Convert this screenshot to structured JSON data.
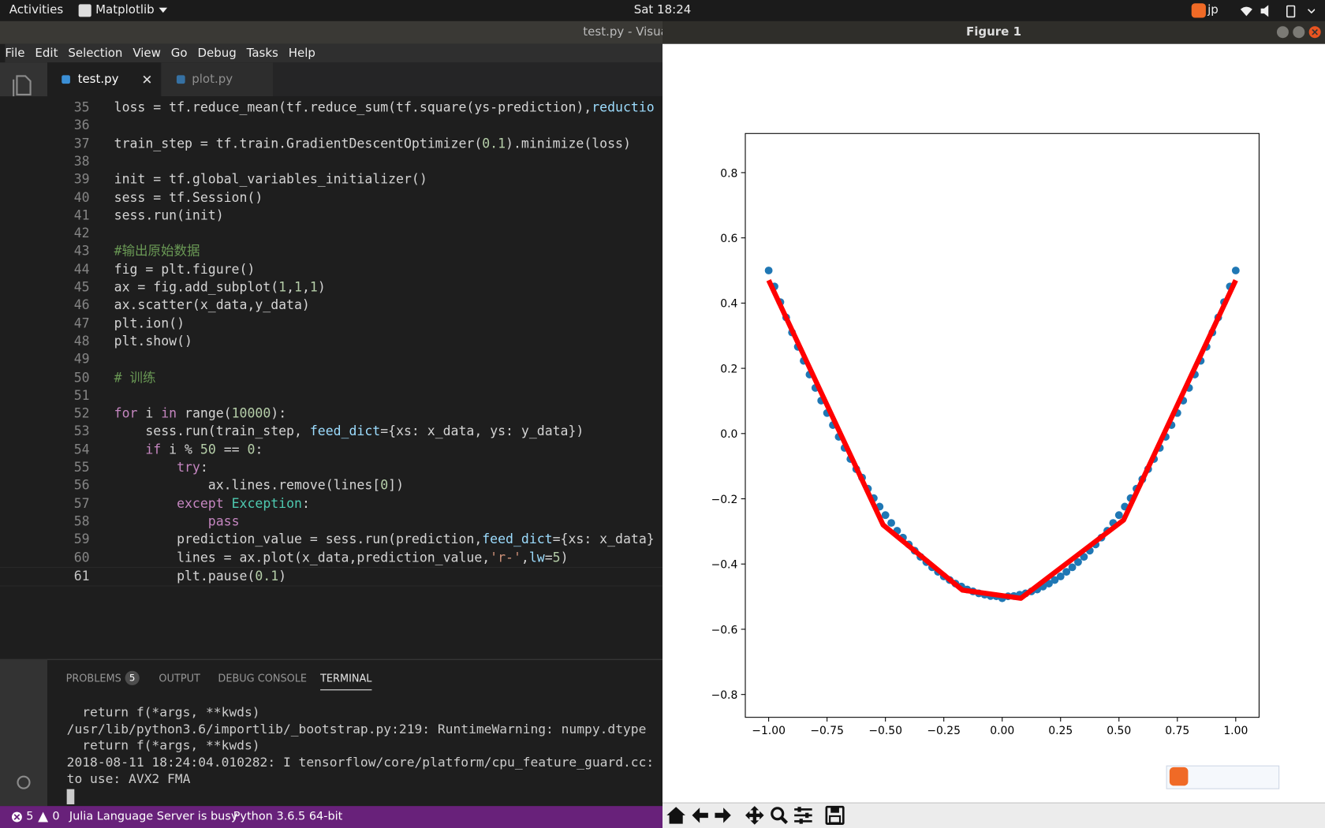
{
  "topbar": {
    "activities": "Activities",
    "app": "Matplotlib",
    "clock": "Sat 18:24",
    "input": "jp"
  },
  "editor_window": {
    "title": "test.py - Visua",
    "menu": [
      "File",
      "Edit",
      "Selection",
      "View",
      "Go",
      "Debug",
      "Tasks",
      "Help"
    ],
    "tabs": [
      "test.py",
      "plot.py"
    ],
    "lines": [
      {
        "n": 35,
        "code": "loss = tf.reduce_mean(tf.reduce_sum(tf.square(ys-prediction),reductio"
      },
      {
        "n": 36
      },
      {
        "n": 37,
        "code": "train_step = tf.train.GradientDescentOptimizer(0.1).minimize(loss)"
      },
      {
        "n": 38
      },
      {
        "n": 39,
        "code": "init = tf.global_variables_initializer()"
      },
      {
        "n": 40,
        "code": "sess = tf.Session()"
      },
      {
        "n": 41,
        "code": "sess.run(init)"
      },
      {
        "n": 42
      },
      {
        "n": 43,
        "code": "#输出原始数据"
      },
      {
        "n": 44,
        "code": "fig = plt.figure()"
      },
      {
        "n": 45,
        "code": "ax = fig.add_subplot(1,1,1)"
      },
      {
        "n": 46,
        "code": "ax.scatter(x_data,y_data)"
      },
      {
        "n": 47,
        "code": "plt.ion()"
      },
      {
        "n": 48,
        "code": "plt.show()"
      },
      {
        "n": 49
      },
      {
        "n": 50,
        "code": "# 训练"
      },
      {
        "n": 51
      },
      {
        "n": 52,
        "code": "for i in range(10000):"
      },
      {
        "n": 53,
        "code": "    sess.run(train_step, feed_dict={xs: x_data, ys: y_data})"
      },
      {
        "n": 54,
        "code": "    if i % 50 == 0:"
      },
      {
        "n": 55,
        "code": "        try:"
      },
      {
        "n": 56,
        "code": "            ax.lines.remove(lines[0])"
      },
      {
        "n": 57,
        "code": "        except Exception:"
      },
      {
        "n": 58,
        "code": "            pass"
      },
      {
        "n": 59,
        "code": "        prediction_value = sess.run(prediction,feed_dict={xs: x_data}"
      },
      {
        "n": 60,
        "code": "        lines = ax.plot(x_data,prediction_value,'r-',lw=5)"
      },
      {
        "n": 61,
        "code": "        plt.pause(0.1)"
      }
    ],
    "panel_tabs": [
      "PROBLEMS",
      "OUTPUT",
      "DEBUG CONSOLE",
      "TERMINAL"
    ],
    "problems_count": 5,
    "terminal": [
      "  return f(*args, **kwds)",
      "/usr/lib/python3.6/importlib/_bootstrap.py:219: RuntimeWarning: numpy.dtype",
      "  return f(*args, **kwds)",
      "2018-08-11 18:24:04.010282: I tensorflow/core/platform/cpu_feature_guard.cc:",
      "to use: AVX2 FMA"
    ],
    "status": {
      "errors": 5,
      "warnings": 0,
      "julia": "Julia Language Server is busy",
      "python": "Python 3.6.5 64-bit"
    }
  },
  "figure_window": {
    "title": "Figure 1"
  },
  "chart_data": {
    "type": "scatter",
    "series": [
      {
        "type": "scatter",
        "color": "#1f77b4",
        "x": [
          -1,
          -0.975,
          -0.95,
          -0.925,
          -0.9,
          -0.875,
          -0.85,
          -0.825,
          -0.8,
          -0.775,
          -0.75,
          -0.725,
          -0.7,
          -0.675,
          -0.65,
          -0.625,
          -0.6,
          -0.575,
          -0.55,
          -0.525,
          -0.5,
          -0.475,
          -0.45,
          -0.425,
          -0.4,
          -0.375,
          -0.35,
          -0.325,
          -0.3,
          -0.275,
          -0.25,
          -0.225,
          -0.2,
          -0.175,
          -0.15,
          -0.125,
          -0.1,
          -0.075,
          -0.05,
          -0.025,
          0,
          0.025,
          0.05,
          0.075,
          0.1,
          0.125,
          0.15,
          0.175,
          0.2,
          0.225,
          0.25,
          0.275,
          0.3,
          0.325,
          0.35,
          0.375,
          0.4,
          0.425,
          0.45,
          0.475,
          0.5,
          0.525,
          0.55,
          0.575,
          0.6,
          0.625,
          0.65,
          0.675,
          0.7,
          0.725,
          0.75,
          0.775,
          0.8,
          0.825,
          0.85,
          0.875,
          0.9,
          0.925,
          0.95,
          0.975,
          1
        ],
        "values": [
          0.5,
          0.451,
          0.403,
          0.356,
          0.31,
          0.266,
          0.223,
          0.181,
          0.14,
          0.101,
          0.063,
          0.026,
          -0.01,
          -0.044,
          -0.078,
          -0.109,
          -0.135,
          -0.169,
          -0.198,
          -0.224,
          -0.25,
          -0.274,
          -0.298,
          -0.319,
          -0.34,
          -0.359,
          -0.378,
          -0.394,
          -0.41,
          -0.424,
          -0.438,
          -0.449,
          -0.46,
          -0.469,
          -0.478,
          -0.484,
          -0.49,
          -0.494,
          -0.498,
          -0.499,
          -0.505,
          -0.499,
          -0.498,
          -0.494,
          -0.49,
          -0.484,
          -0.478,
          -0.469,
          -0.46,
          -0.449,
          -0.438,
          -0.424,
          -0.41,
          -0.394,
          -0.378,
          -0.359,
          -0.34,
          -0.319,
          -0.298,
          -0.274,
          -0.25,
          -0.224,
          -0.198,
          -0.169,
          -0.14,
          -0.109,
          -0.078,
          -0.044,
          -0.01,
          0.026,
          0.063,
          0.101,
          0.14,
          0.181,
          0.223,
          0.266,
          0.31,
          0.356,
          0.403,
          0.451,
          0.5
        ]
      },
      {
        "type": "line",
        "color": "#ff0000",
        "x": [
          -1,
          -0.51,
          -0.17,
          0.08,
          0.52,
          1
        ],
        "values": [
          0.47,
          -0.28,
          -0.48,
          -0.505,
          -0.265,
          0.47
        ]
      }
    ],
    "xlim": [
      -1.1,
      1.1
    ],
    "ylim": [
      -0.87,
      0.92
    ],
    "xticks": [
      {
        "value": -1,
        "label": "−1.00"
      },
      {
        "value": -0.75,
        "label": "−0.75"
      },
      {
        "value": -0.5,
        "label": "−0.50"
      },
      {
        "value": -0.25,
        "label": "−0.25"
      },
      {
        "value": 0,
        "label": "0.00"
      },
      0.25,
      {
        "value": 0.5,
        "label": "0.50"
      },
      0.75,
      {
        "value": 1,
        "label": "1.00"
      }
    ],
    "yticks": [
      {
        "value": -0.8,
        "label": "−0.8"
      },
      {
        "value": -0.6,
        "label": "−0.6"
      },
      {
        "value": -0.4,
        "label": "−0.4"
      },
      {
        "value": -0.2,
        "label": "−0.2"
      },
      {
        "value": 0,
        "label": "0.0"
      },
      0.2,
      0.4,
      0.6,
      0.8
    ],
    "grid": false
  }
}
